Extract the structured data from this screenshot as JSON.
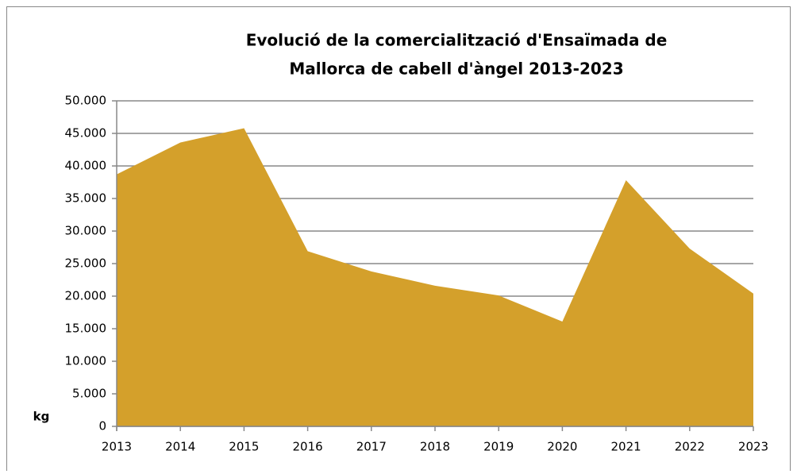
{
  "chart_data": {
    "type": "area",
    "title": [
      "Evolució de la comercialització d'Ensaïmada de",
      "Mallorca de cabell d'àngel 2013-2023"
    ],
    "y_label": "kg",
    "categories": [
      "2013",
      "2014",
      "2015",
      "2016",
      "2017",
      "2018",
      "2019",
      "2020",
      "2021",
      "2022",
      "2023"
    ],
    "values": [
      38700,
      43600,
      45800,
      26900,
      23800,
      21600,
      20100,
      16100,
      37800,
      27300,
      20400
    ],
    "color": "#d4a02b",
    "ylim": [
      0,
      50000
    ],
    "yticks": [
      0,
      {
        "value": 5000,
        "label": "5.000"
      },
      {
        "value": 10000,
        "label": "10.000"
      },
      {
        "value": 15000,
        "label": "15.000"
      },
      {
        "value": 20000,
        "label": "20.000"
      },
      {
        "value": 25000,
        "label": "25.000"
      },
      {
        "value": 30000,
        "label": "30.000"
      },
      {
        "value": 35000,
        "label": "35.000"
      },
      {
        "value": 40000,
        "label": "40.000"
      },
      {
        "value": 45000,
        "label": "45.000"
      },
      {
        "value": 50000,
        "label": "50.000"
      }
    ],
    "grid": true
  }
}
